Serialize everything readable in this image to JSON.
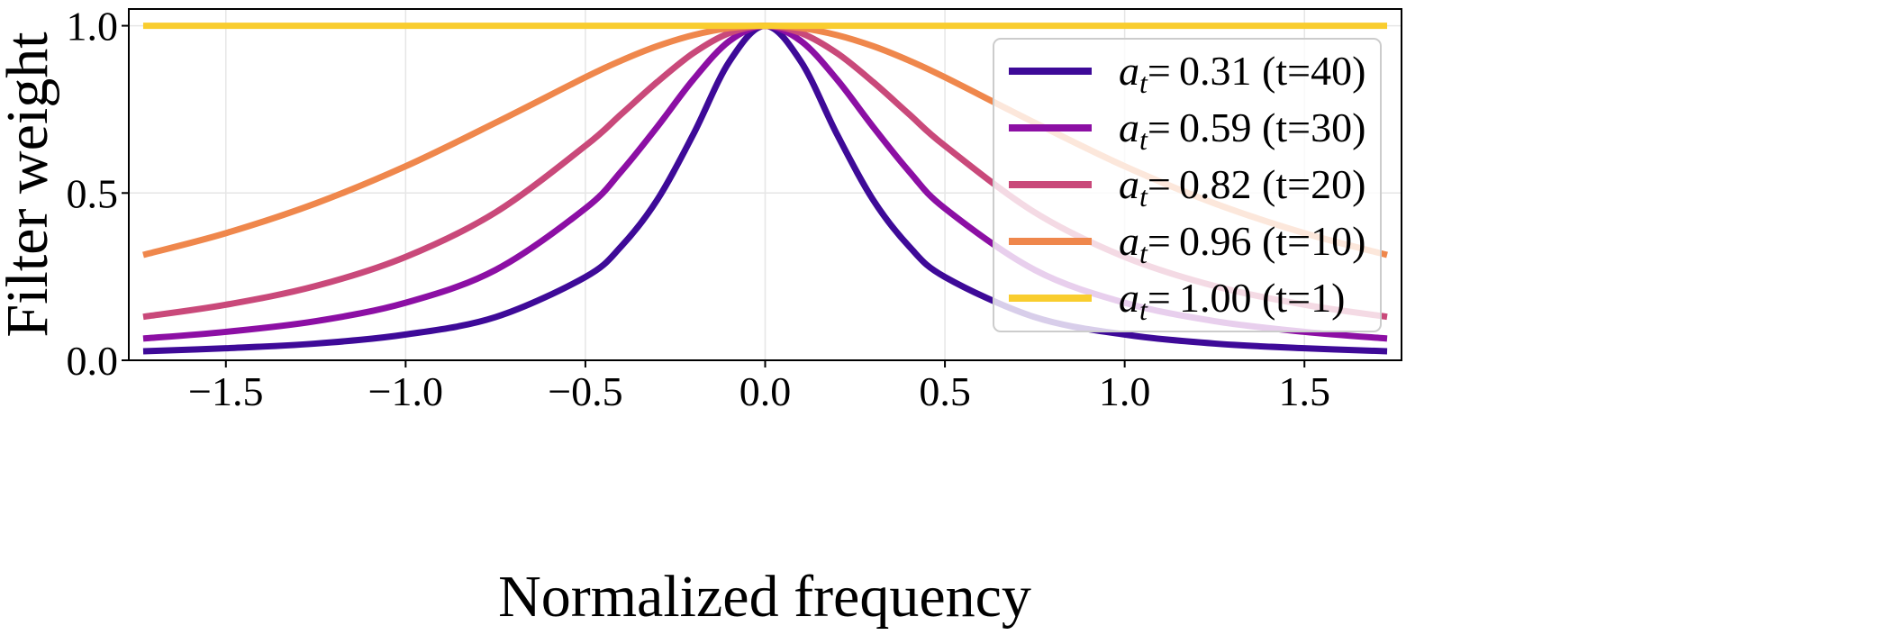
{
  "chart_data": {
    "type": "line",
    "xlabel": "Normalized frequency",
    "ylabel": "Filter weight",
    "xlim": [
      -1.77,
      1.77
    ],
    "ylim": [
      0,
      1.05
    ],
    "grid": true,
    "legend_position": "right",
    "xticks": [
      "−1.5",
      "−1.0",
      "−0.5",
      "0.0",
      "0.5",
      "1.0",
      "1.5"
    ],
    "xtick_values": [
      -1.5,
      -1.0,
      -0.5,
      0.0,
      0.5,
      1.0,
      1.5
    ],
    "yticks": [
      "0.0",
      "0.5",
      "1.0"
    ],
    "ytick_values": [
      0.0,
      0.5,
      1.0
    ],
    "x": [
      -1.73,
      -1.5,
      -1.25,
      -1.0,
      -0.75,
      -0.5,
      -0.4,
      -0.3,
      -0.2,
      -0.1,
      0,
      0.1,
      0.2,
      0.3,
      0.4,
      0.5,
      0.75,
      1.0,
      1.25,
      1.5,
      1.73
    ],
    "series": [
      {
        "symbol": "a",
        "subscript": "t",
        "label": "= 0.31 (t=40)",
        "color": "#3e0a98",
        "values": [
          0.027,
          0.036,
          0.05,
          0.077,
          0.129,
          0.249,
          0.341,
          0.48,
          0.675,
          0.892,
          1.0,
          0.892,
          0.675,
          0.48,
          0.341,
          0.249,
          0.129,
          0.077,
          0.05,
          0.036,
          0.027
        ]
      },
      {
        "symbol": "a",
        "subscript": "t",
        "label": "= 0.59 (t=30)",
        "color": "#8c0fa4",
        "values": [
          0.065,
          0.085,
          0.117,
          0.172,
          0.27,
          0.454,
          0.565,
          0.698,
          0.839,
          0.954,
          1.0,
          0.954,
          0.839,
          0.698,
          0.565,
          0.454,
          0.27,
          0.172,
          0.117,
          0.085,
          0.065
        ]
      },
      {
        "symbol": "a",
        "subscript": "t",
        "label": "= 0.82 (t=20)",
        "color": "#c9497a",
        "values": [
          0.13,
          0.166,
          0.222,
          0.309,
          0.442,
          0.641,
          0.736,
          0.832,
          0.918,
          0.978,
          1.0,
          0.978,
          0.918,
          0.832,
          0.736,
          0.641,
          0.442,
          0.309,
          0.222,
          0.166,
          0.13
        ]
      },
      {
        "symbol": "a",
        "subscript": "t",
        "label": "= 0.96 (t=10)",
        "color": "#ef874c",
        "values": [
          0.315,
          0.38,
          0.469,
          0.58,
          0.71,
          0.846,
          0.896,
          0.939,
          0.972,
          0.993,
          1.0,
          0.993,
          0.972,
          0.939,
          0.896,
          0.846,
          0.71,
          0.58,
          0.469,
          0.38,
          0.315
        ]
      },
      {
        "symbol": "a",
        "subscript": "t",
        "label": "= 1.00 (t=1)",
        "color": "#f9cd2e",
        "values": [
          1,
          1,
          1,
          1,
          1,
          1,
          1,
          1,
          1,
          1,
          1,
          1,
          1,
          1,
          1,
          1,
          1,
          1,
          1,
          1,
          1
        ]
      }
    ]
  }
}
